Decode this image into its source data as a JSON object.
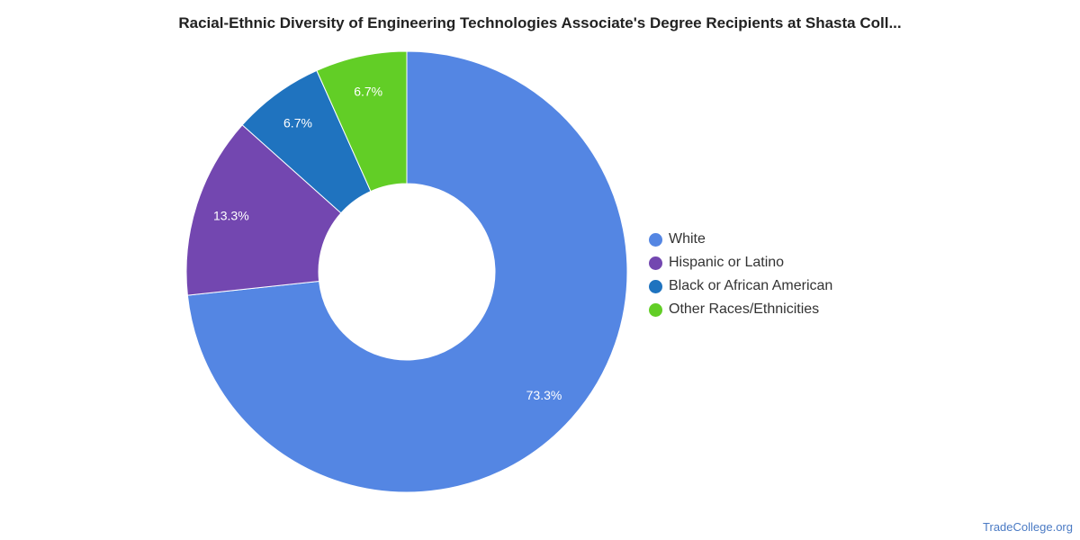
{
  "chart_data": {
    "type": "pie",
    "title": "Racial-Ethnic Diversity of Engineering Technologies Associate's Degree Recipients at Shasta Coll...",
    "categories": [
      "White",
      "Hispanic or Latino",
      "Black or African American",
      "Other Races/Ethnicities"
    ],
    "values": [
      73.3,
      13.3,
      6.7,
      6.7
    ],
    "data_labels": [
      "73.3%",
      "13.3%",
      "6.7%",
      "6.7%"
    ],
    "colors": [
      "#5486e3",
      "#7347b0",
      "#1f73bf",
      "#62ce26"
    ],
    "donut": true,
    "legend_position": "right"
  },
  "source": "TradeCollege.org"
}
